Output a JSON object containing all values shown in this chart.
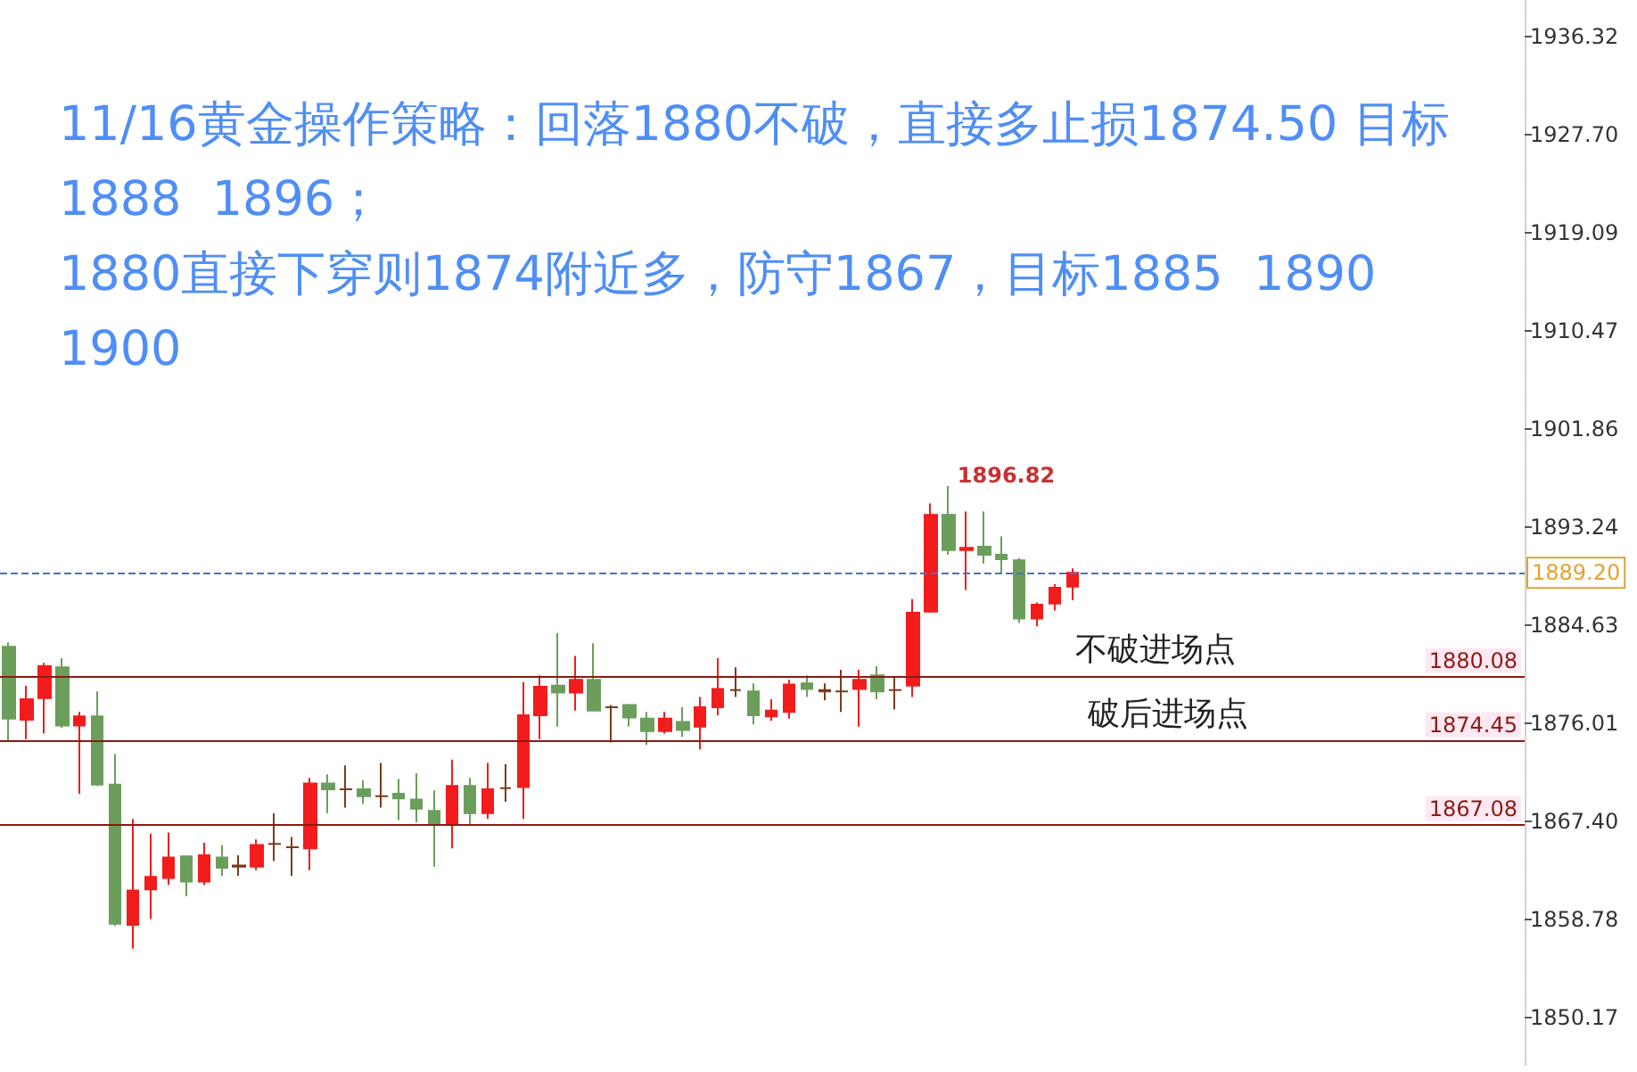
{
  "chart_data": {
    "type": "candlestick",
    "title": "11/16黄金操作策略：回落1880不破，直接多止损1874.50 目标1888  1896；\n1880直接下穿则1874附近多，防守1867，目标1885  1890 1900",
    "categories": [
      null,
      null,
      null,
      null,
      null,
      null,
      null,
      null,
      null,
      null,
      null,
      null,
      null,
      null,
      null,
      null,
      null,
      null,
      null,
      null,
      null,
      null,
      null,
      null,
      null,
      null,
      null,
      null,
      null,
      null,
      null,
      null,
      null,
      null,
      null,
      null,
      null,
      null,
      null,
      null,
      null,
      null,
      null,
      null,
      null,
      null,
      null,
      null,
      null,
      null,
      null,
      null,
      null,
      null,
      null,
      null,
      null,
      null,
      null,
      null,
      null,
      null,
      null,
      null,
      null,
      null,
      null,
      null,
      null,
      null,
      null,
      null,
      null,
      null,
      null,
      null,
      null,
      null,
      null,
      null,
      null,
      null,
      null,
      null,
      null,
      null
    ],
    "ohlc": [
      [
        1882.7,
        1883.1,
        1874.5,
        1876.4
      ],
      [
        1876.3,
        1879.3,
        1874.6,
        1878.1
      ],
      [
        1878.2,
        1881.3,
        1875.1,
        1881.0
      ],
      [
        1880.9,
        1881.7,
        1875.6,
        1875.8
      ],
      [
        1875.8,
        1877.0,
        1869.8,
        1876.6
      ],
      [
        1876.6,
        1878.8,
        1870.5,
        1870.6
      ],
      [
        1870.6,
        1873.3,
        1858.2,
        1858.4
      ],
      [
        1858.3,
        1867.6,
        1856.2,
        1861.3
      ],
      [
        1861.4,
        1866.3,
        1858.8,
        1862.5
      ],
      [
        1862.4,
        1866.4,
        1861.8,
        1864.2
      ],
      [
        1864.3,
        1864.4,
        1860.8,
        1862.1
      ],
      [
        1862.1,
        1865.5,
        1861.8,
        1864.4
      ],
      [
        1864.2,
        1865.3,
        1862.6,
        1863.3
      ],
      [
        1863.4,
        1864.4,
        1862.6,
        1863.5
      ],
      [
        1863.4,
        1865.8,
        1863.1,
        1865.3
      ],
      [
        1865.4,
        1868.1,
        1863.9,
        1865.4
      ],
      [
        1865.1,
        1866.0,
        1862.6,
        1865.1
      ],
      [
        1865.0,
        1871.2,
        1863.1,
        1870.7
      ],
      [
        1870.7,
        1871.5,
        1868.1,
        1870.2
      ],
      [
        1870.2,
        1872.3,
        1868.6,
        1870.2
      ],
      [
        1870.2,
        1871.0,
        1868.9,
        1869.6
      ],
      [
        1869.6,
        1872.5,
        1868.6,
        1869.6
      ],
      [
        1869.8,
        1871.1,
        1867.5,
        1869.4
      ],
      [
        1869.3,
        1871.6,
        1867.3,
        1868.5
      ],
      [
        1868.3,
        1870.1,
        1863.4,
        1867.1
      ],
      [
        1867.2,
        1872.8,
        1865.0,
        1870.5
      ],
      [
        1870.5,
        1871.2,
        1867.0,
        1868.1
      ],
      [
        1868.1,
        1872.5,
        1867.6,
        1870.2
      ],
      [
        1870.3,
        1872.4,
        1869.1,
        1870.3
      ],
      [
        1870.4,
        1879.6,
        1867.6,
        1876.7
      ],
      [
        1876.7,
        1880.2,
        1874.6,
        1879.2
      ],
      [
        1879.3,
        1883.9,
        1875.7,
        1878.7
      ],
      [
        1878.7,
        1881.9,
        1877.1,
        1879.8
      ],
      [
        1879.8,
        1883.0,
        1877.1,
        1877.1
      ],
      [
        1877.4,
        1877.6,
        1874.3,
        1877.4
      ],
      [
        1877.6,
        1877.7,
        1875.7,
        1876.5
      ],
      [
        1876.4,
        1877.0,
        1874.1,
        1875.3
      ],
      [
        1875.3,
        1877.0,
        1875.1,
        1876.4
      ],
      [
        1876.1,
        1877.4,
        1874.8,
        1875.4
      ],
      [
        1875.7,
        1878.3,
        1873.7,
        1877.4
      ],
      [
        1877.4,
        1881.7,
        1876.7,
        1879.0
      ],
      [
        1878.9,
        1880.9,
        1878.3,
        1878.9
      ],
      [
        1878.8,
        1879.5,
        1875.9,
        1876.7
      ],
      [
        1876.6,
        1878.1,
        1876.2,
        1877.1
      ],
      [
        1877.0,
        1879.8,
        1876.4,
        1879.4
      ],
      [
        1879.5,
        1880.2,
        1878.3,
        1879.0
      ],
      [
        1878.8,
        1879.5,
        1878.0,
        1878.9
      ],
      [
        1878.8,
        1880.7,
        1877.0,
        1878.8
      ],
      [
        1879.0,
        1880.7,
        1875.7,
        1879.8
      ],
      [
        1880.2,
        1881.0,
        1878.1,
        1878.8
      ],
      [
        1878.9,
        1880.1,
        1877.2,
        1878.9
      ],
      [
        1879.3,
        1886.9,
        1878.3,
        1885.7
      ],
      [
        1885.8,
        1895.3,
        1885.7,
        1894.3
      ],
      [
        1894.3,
        1896.82,
        1890.8,
        1891.2
      ],
      [
        1891.2,
        1894.6,
        1887.7,
        1891.4
      ],
      [
        1891.5,
        1894.6,
        1890.0,
        1890.8
      ],
      [
        1890.8,
        1892.4,
        1889.2,
        1890.4
      ],
      [
        1890.3,
        1890.5,
        1884.8,
        1885.2
      ],
      [
        1885.2,
        1886.6,
        1884.5,
        1886.4
      ],
      [
        1886.5,
        1888.2,
        1885.9,
        1887.9
      ],
      [
        1888.0,
        1889.6,
        1886.8,
        1889.2
      ],
      null,
      null,
      null,
      null,
      null,
      null,
      null,
      null,
      null,
      null,
      null,
      null,
      null,
      null,
      null,
      null,
      null,
      null,
      null,
      null,
      null,
      null,
      null,
      null,
      null
    ],
    "colors": [
      "#6b9e5b",
      "#f21c1c",
      "#f21c1c",
      "#6b9e5b",
      "#f21c1c",
      "#6b9e5b",
      "#6b9e5b",
      "#f21c1c",
      "#f21c1c",
      "#f21c1c",
      "#6b9e5b",
      "#f21c1c",
      "#6b9e5b",
      "#7b3b1b",
      "#f21c1c",
      "#7b3b1b",
      "#7b3b1b",
      "#f21c1c",
      "#6b9e5b",
      "#7b3b1b",
      "#6b9e5b",
      "#7b3b1b",
      "#6b9e5b",
      "#6b9e5b",
      "#6b9e5b",
      "#f21c1c",
      "#6b9e5b",
      "#f21c1c",
      "#7b3b1b",
      "#f21c1c",
      "#f21c1c",
      "#6b9e5b",
      "#f21c1c",
      "#6b9e5b",
      "#7b3b1b",
      "#6b9e5b",
      "#6b9e5b",
      "#f21c1c",
      "#6b9e5b",
      "#f21c1c",
      "#f21c1c",
      "#7b3b1b",
      "#6b9e5b",
      "#f21c1c",
      "#f21c1c",
      "#6b9e5b",
      "#7b3b1b",
      "#7b3b1b",
      "#f21c1c",
      "#6b9e5b",
      "#7b3b1b",
      "#f21c1c",
      "#f21c1c",
      "#6b9e5b",
      "#f21c1c",
      "#6b9e5b",
      "#6b9e5b",
      "#6b9e5b",
      "#f21c1c",
      "#f21c1c",
      "#f21c1c",
      null,
      null,
      null,
      null,
      null,
      null,
      null,
      null,
      null,
      null,
      null,
      null,
      null,
      null,
      null,
      null,
      null,
      null,
      null,
      null,
      null,
      null,
      null,
      null,
      null
    ],
    "ylim": [
      1846,
      1939.5
    ],
    "yticks": [
      {
        "value": 1850.17,
        "label": "1850.17"
      },
      {
        "value": 1858.78,
        "label": "1858.78"
      },
      {
        "value": 1867.4,
        "label": "1867.40"
      },
      {
        "value": 1876.01,
        "label": "1876.01"
      },
      {
        "value": 1884.63,
        "label": "1884.63"
      },
      {
        "value": 1893.24,
        "label": "1893.24"
      },
      {
        "value": 1901.86,
        "label": "1901.86"
      },
      {
        "value": 1910.47,
        "label": "1910.47"
      },
      {
        "value": 1919.09,
        "label": "1919.09"
      },
      {
        "value": 1927.7,
        "label": "1927.70"
      },
      {
        "value": 1936.32,
        "label": "1936.32"
      }
    ],
    "tick_labels": "y",
    "ref_lines": [
      {
        "axis": "y",
        "value": 1880.08,
        "label": "1880.08",
        "color": "#8b1a10",
        "line_style": "solid"
      },
      {
        "axis": "y",
        "value": 1874.45,
        "label": "1874.45",
        "color": "#8b1a10",
        "line_style": "solid"
      },
      {
        "axis": "y",
        "value": 1867.08,
        "label": "1867.08",
        "color": "#8b1a10",
        "line_style": "solid"
      },
      {
        "axis": "y",
        "value": 1889.2,
        "label": "1889.20",
        "color": "#4a6fd0",
        "line_style": "dashed"
      }
    ],
    "annotations": [
      "1896.82",
      {
        "text": "不破进场点",
        "y": 1880.08
      },
      {
        "text": "破后进场点",
        "y": 1874.45
      }
    ],
    "grid": false
  }
}
